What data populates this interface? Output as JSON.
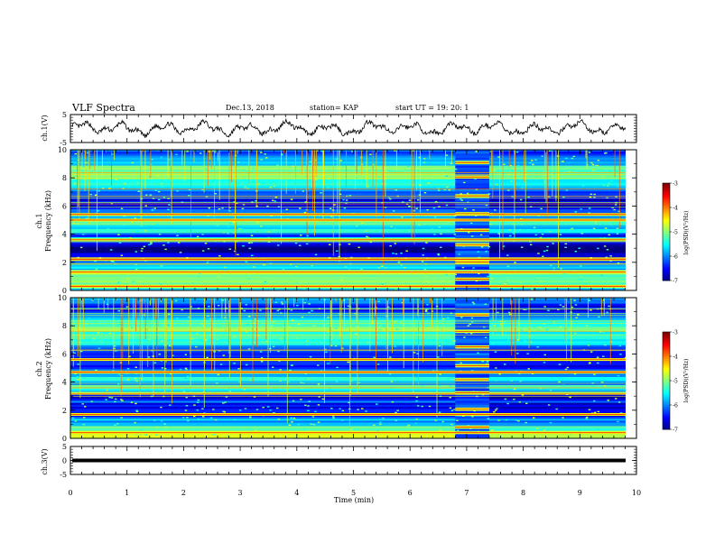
{
  "header": {
    "title": "VLF Spectra",
    "date": "Dec.13, 2018",
    "station": "station= KAP",
    "start": "start  UT =   19: 20: 1"
  },
  "chart_data": [
    {
      "type": "line",
      "panel": "ch1-waveform",
      "ylabel": "ch.1(V)",
      "ylim": [
        -5,
        5
      ],
      "yticks": [
        "5",
        "-5"
      ],
      "xlim": [
        0,
        10
      ],
      "series": [
        {
          "values_desc": "noisy waveform oscillating between about -3 and 3"
        }
      ]
    },
    {
      "type": "heatmap",
      "panel": "ch1-spectrogram",
      "ylabel": "ch.1",
      "ylabel2": "Frequency (kHz)",
      "ylim": [
        0,
        10
      ],
      "yticks": [
        "0",
        "2",
        "4",
        "6",
        "8",
        "10"
      ],
      "xlim": [
        0,
        10
      ],
      "colorbar": {
        "label": "log(PSD)(V²/Hz)",
        "range": [
          -7,
          -3
        ],
        "ticks": [
          "-3",
          "-4",
          "-5",
          "-6",
          "-7"
        ]
      },
      "strong_bands_khz": [
        0.3,
        1.3,
        2.2,
        3.6,
        5.0,
        5.4
      ],
      "gap_window_min": [
        6.8,
        7.4
      ]
    },
    {
      "type": "heatmap",
      "panel": "ch2-spectrogram",
      "ylabel": "ch.2",
      "ylabel2": "Frequency (kHz)",
      "ylim": [
        0,
        10
      ],
      "yticks": [
        "0",
        "2",
        "4",
        "6",
        "8",
        "10"
      ],
      "xlim": [
        0,
        10
      ],
      "colorbar": {
        "label": "log(PSD)(V²/Hz)",
        "range": [
          -7,
          -3
        ],
        "ticks": [
          "-3",
          "-4",
          "-5",
          "-6",
          "-7"
        ]
      },
      "strong_bands_khz": [
        0.4,
        1.7,
        3.2,
        4.7,
        5.6
      ],
      "gap_window_min": [
        6.8,
        7.4
      ]
    },
    {
      "type": "line",
      "panel": "ch3-waveform",
      "ylabel": "ch.3(V)",
      "ylim": [
        -5,
        5
      ],
      "yticks": [
        "5",
        "0",
        "-5"
      ],
      "xlim": [
        0,
        10
      ],
      "xlabel": "Time (min)",
      "xticks": [
        "0",
        "1",
        "2",
        "3",
        "4",
        "5",
        "6",
        "7",
        "8",
        "9",
        "10"
      ],
      "series": [
        {
          "values_desc": "flat thick line at about 0 V"
        }
      ]
    }
  ],
  "colors": {
    "line": "#000000",
    "background": "#ffffff"
  }
}
